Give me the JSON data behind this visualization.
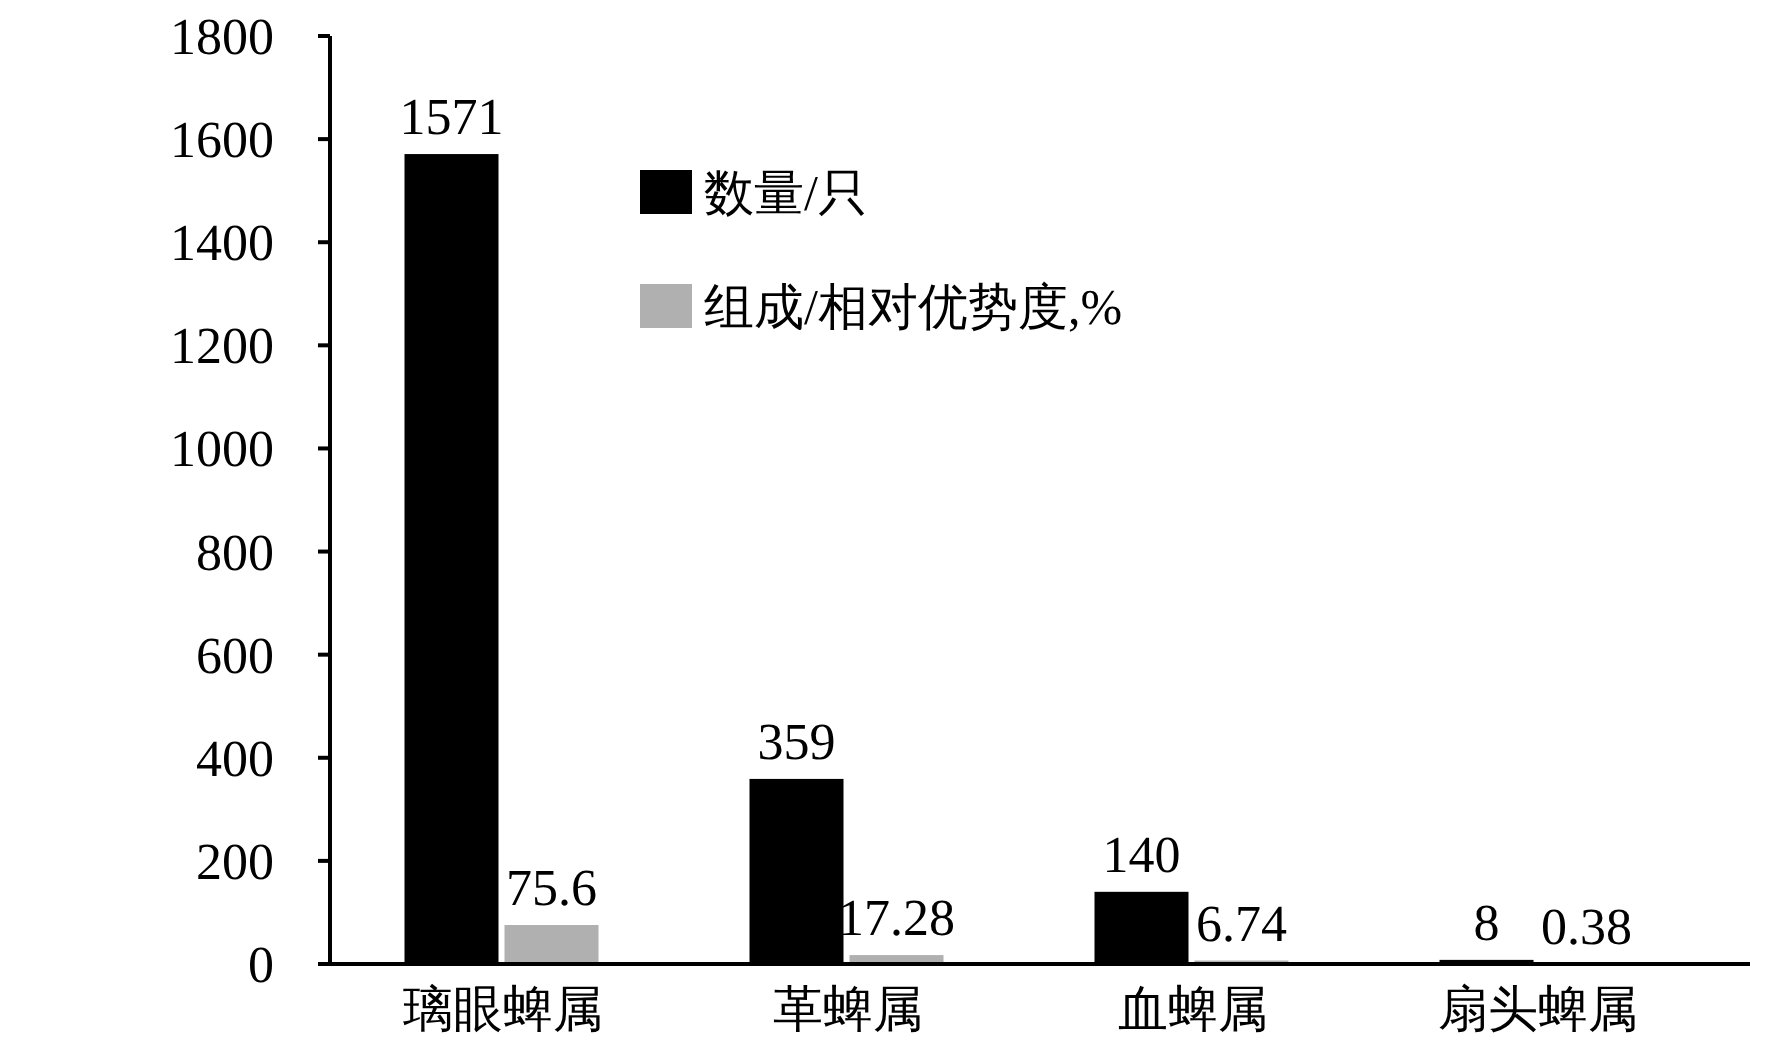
{
  "chart_data": {
    "type": "bar",
    "categories": [
      "璃眼蜱属",
      "革蜱属",
      "血蜱属",
      "扇头蜱属"
    ],
    "series": [
      {
        "name": "数量/只",
        "color": "#000000",
        "values": [
          1571,
          359,
          140,
          8
        ]
      },
      {
        "name": "组成/相对优势度,%",
        "color": "#b0b0b0",
        "values": [
          75.6,
          17.28,
          6.74,
          0.38
        ]
      }
    ],
    "ylim": [
      0,
      1800
    ],
    "yticks": [
      0,
      200,
      400,
      600,
      800,
      1000,
      1200,
      1400,
      1600,
      1800
    ],
    "data_labels": true,
    "legend": "top"
  }
}
